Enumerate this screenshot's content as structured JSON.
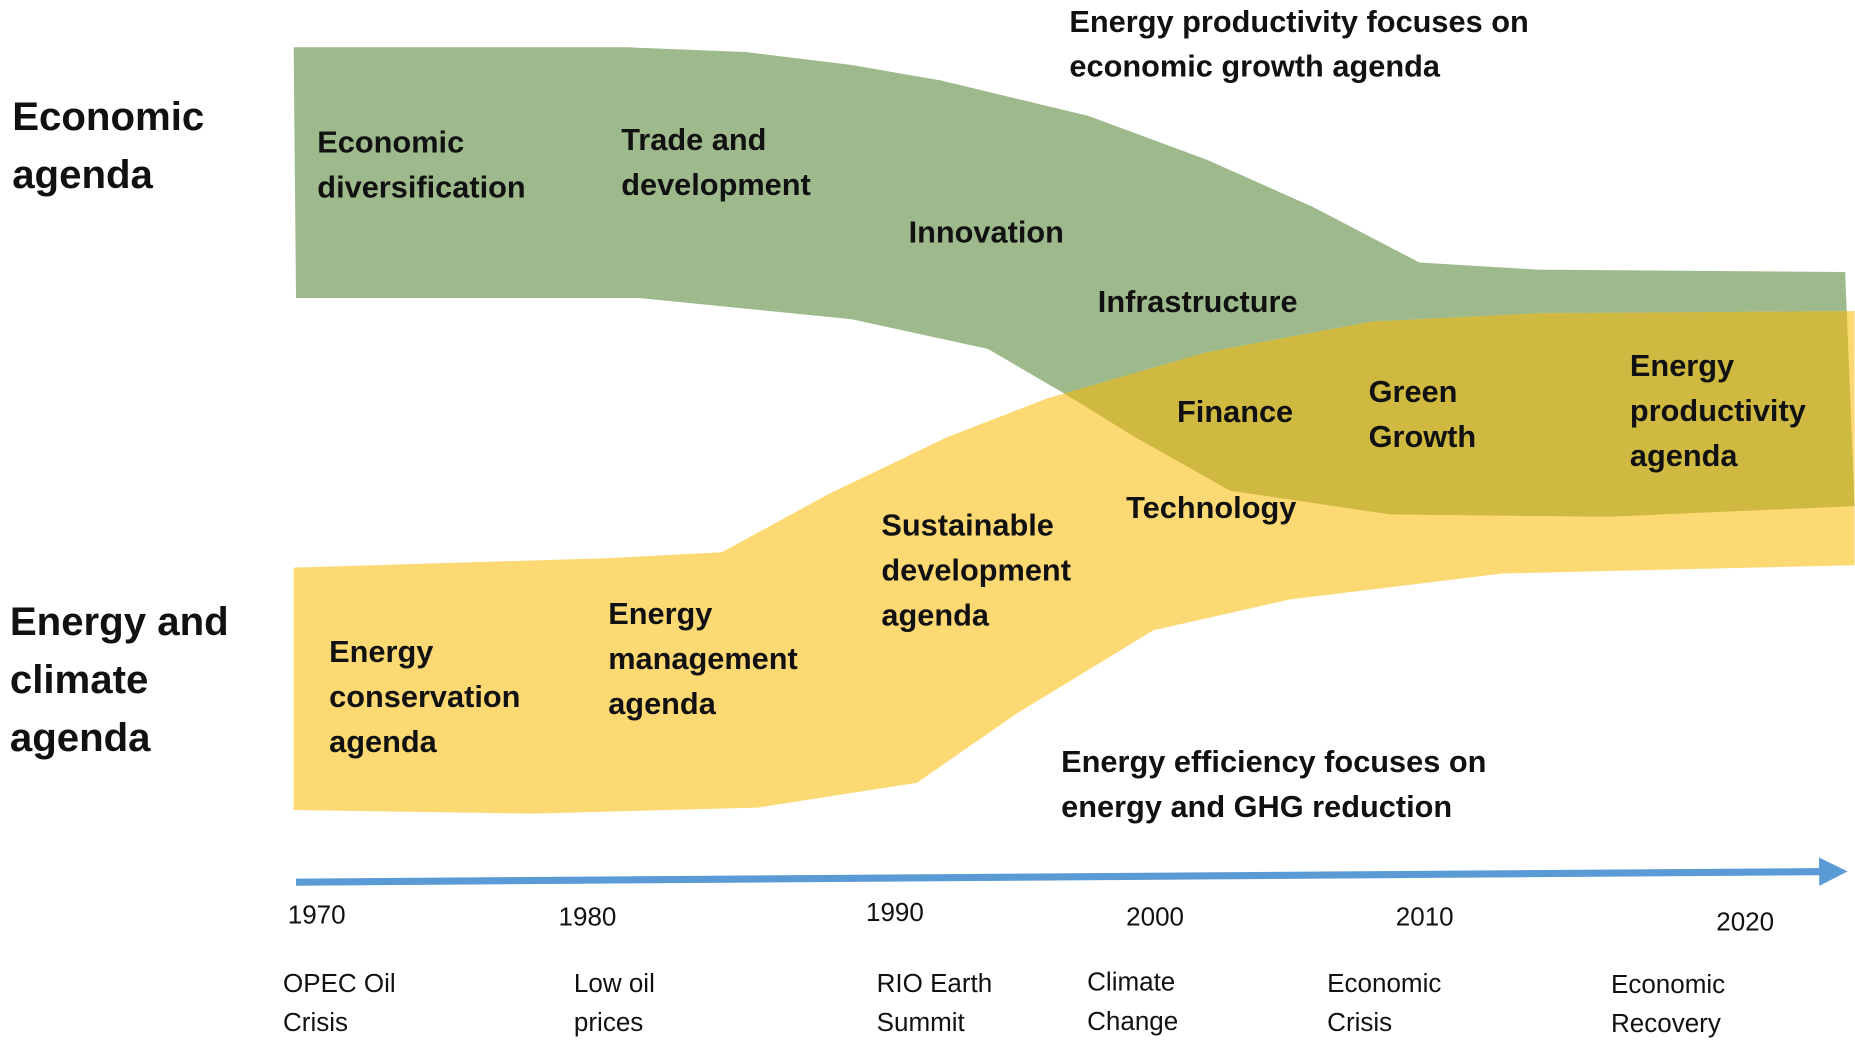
{
  "row_labels": [
    {
      "lines": [
        "Economic",
        "agenda"
      ]
    },
    {
      "lines": [
        "Energy and",
        "climate",
        "agenda"
      ]
    }
  ],
  "annotations": [
    {
      "lines": [
        "Energy productivity focuses on",
        "economic growth agenda"
      ]
    },
    {
      "lines": [
        "Energy efficiency focuses on",
        "energy and GHG reduction"
      ]
    }
  ],
  "economic_agenda_items": [
    {
      "lines": [
        "Economic",
        "diversification"
      ]
    },
    {
      "lines": [
        "Trade and",
        "development"
      ]
    },
    {
      "lines": [
        "Innovation"
      ]
    },
    {
      "lines": [
        "Infrastructure"
      ]
    }
  ],
  "overlap_items": [
    {
      "lines": [
        "Finance"
      ]
    },
    {
      "lines": [
        "Green",
        "Growth"
      ]
    },
    {
      "lines": [
        "Energy",
        "productivity",
        "agenda"
      ]
    }
  ],
  "energy_agenda_items": [
    {
      "lines": [
        "Technology"
      ]
    },
    {
      "lines": [
        "Sustainable",
        "development",
        "agenda"
      ]
    },
    {
      "lines": [
        "Energy",
        "management",
        "agenda"
      ]
    },
    {
      "lines": [
        "Energy",
        "conservation",
        "agenda"
      ]
    }
  ],
  "timeline": [
    {
      "year": "1970",
      "event": [
        "OPEC Oil",
        "Crisis"
      ]
    },
    {
      "year": "1980",
      "event": [
        "Low oil",
        "prices"
      ]
    },
    {
      "year": "1990",
      "event": [
        "RIO Earth",
        "Summit"
      ]
    },
    {
      "year": "2000",
      "event": [
        "Climate",
        "Change"
      ]
    },
    {
      "year": "2010",
      "event": [
        "Economic",
        "Crisis"
      ]
    },
    {
      "year": "2020",
      "event": [
        "Economic",
        "Recovery"
      ]
    }
  ]
}
